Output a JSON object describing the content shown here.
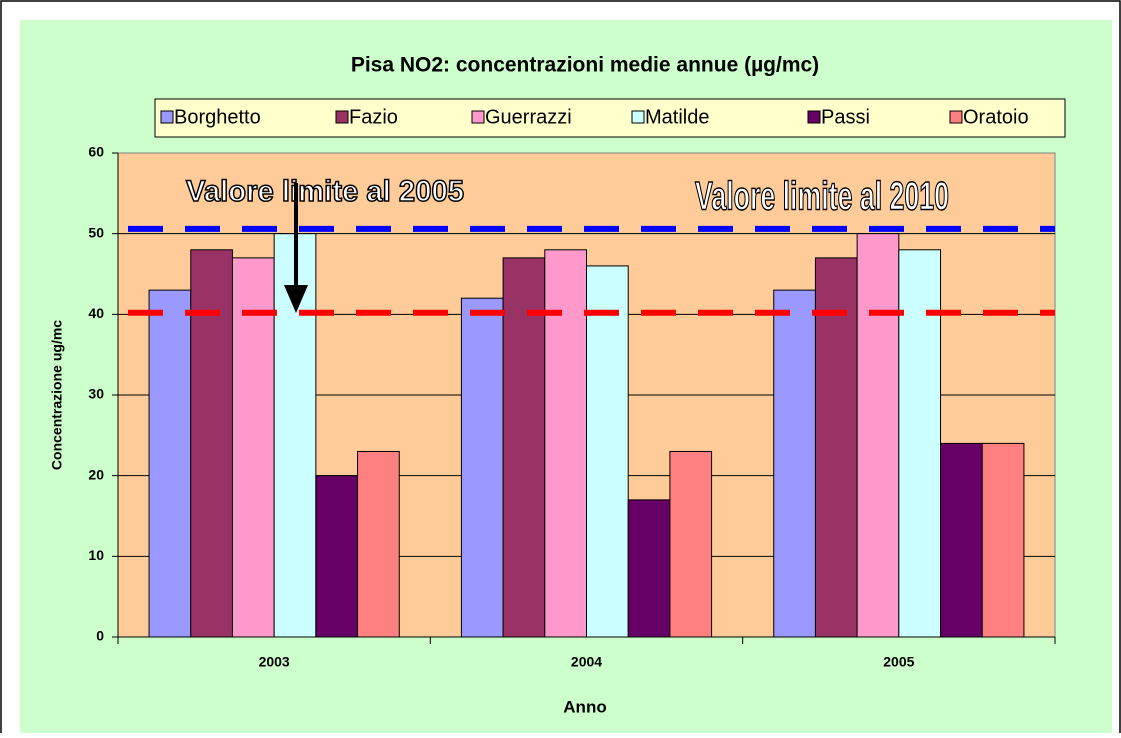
{
  "chart_data": {
    "type": "bar",
    "title": "Pisa NO2: concentrazioni medie annue (µg/mc)",
    "x_label": "Anno",
    "y_label": "Concentrazione ug/mc",
    "categories": [
      "2003",
      "2004",
      "2005"
    ],
    "series": [
      {
        "name": "Borghetto",
        "color": "#9999ff",
        "values": [
          43,
          42,
          43
        ]
      },
      {
        "name": "Fazio",
        "color": "#993366",
        "values": [
          48,
          47,
          47
        ]
      },
      {
        "name": "Guerrazzi",
        "color": "#ff99cc",
        "values": [
          47,
          48,
          50
        ]
      },
      {
        "name": "Matilde",
        "color": "#ccffff",
        "values": [
          50,
          46,
          48
        ]
      },
      {
        "name": "Passi",
        "color": "#660066",
        "values": [
          20,
          17,
          24
        ]
      },
      {
        "name": "Oratoio",
        "color": "#ff8080",
        "values": [
          23,
          23,
          24
        ]
      }
    ],
    "ylim": [
      0,
      60
    ],
    "yticks": [
      0,
      10,
      20,
      30,
      40,
      50,
      60
    ],
    "grid": true,
    "reference_lines": [
      {
        "value": 50.6,
        "color": "#0000ff",
        "label": "Valore limite al 2005"
      },
      {
        "value": 40.2,
        "color": "#ff0000",
        "label": "Valore limite al 2010"
      }
    ]
  }
}
